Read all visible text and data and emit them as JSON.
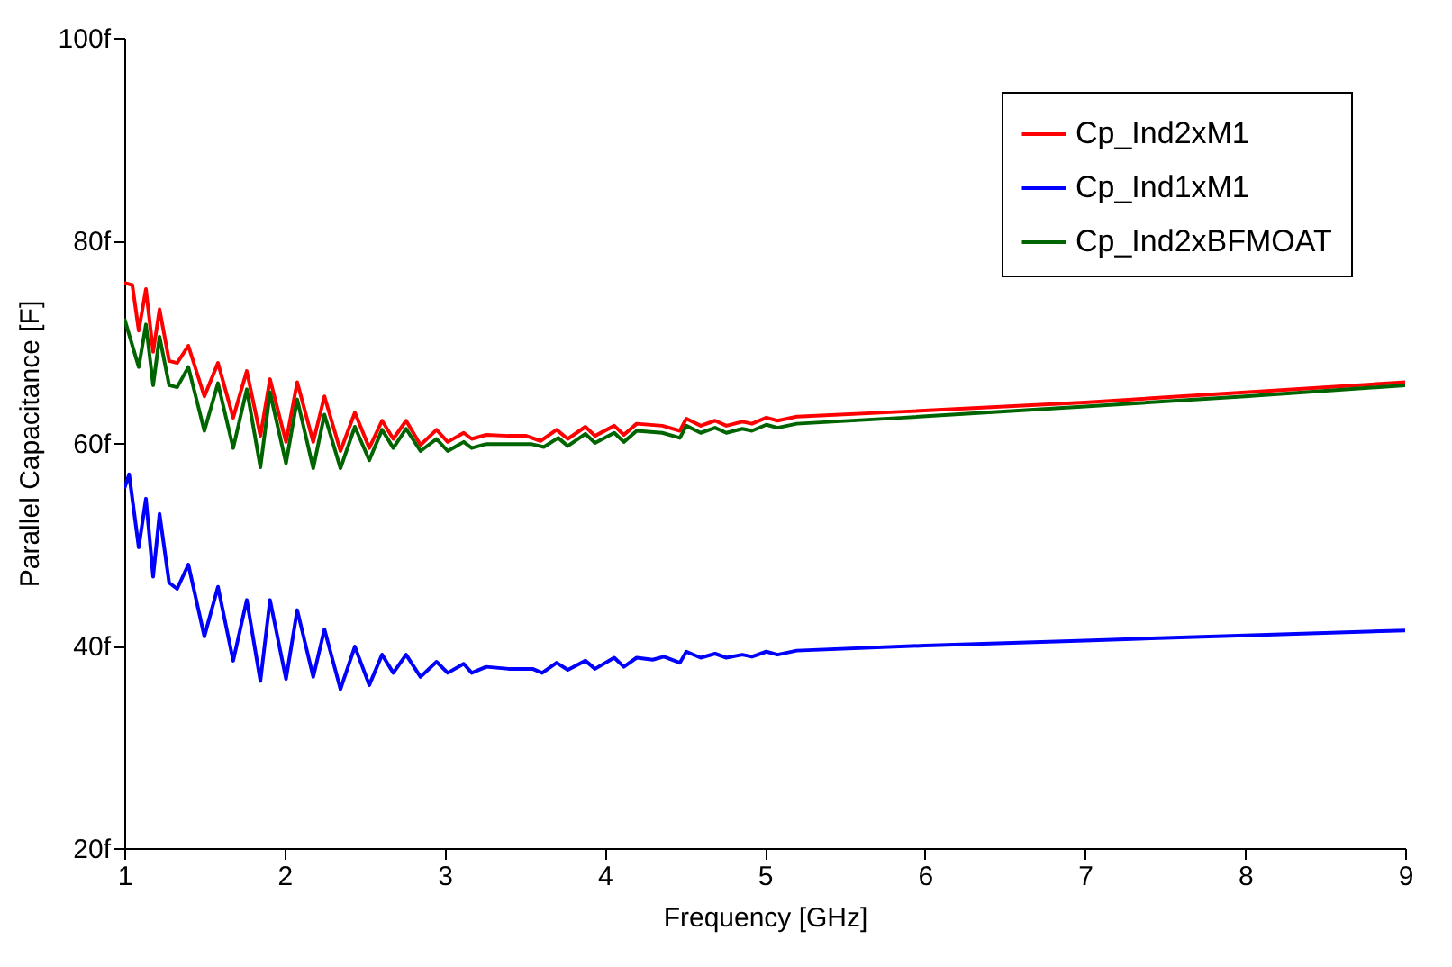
{
  "chart_data": {
    "type": "line",
    "xlabel": "Frequency [GHz]",
    "ylabel": "Parallel Capacitance [F]",
    "xlim": [
      1,
      9
    ],
    "xticks": [
      1,
      2,
      3,
      4,
      5,
      6,
      7,
      8,
      9
    ],
    "ylim": [
      20,
      100
    ],
    "yticks": [
      {
        "value": 20,
        "label": "20f"
      },
      {
        "value": 40,
        "label": "40f"
      },
      {
        "value": 60,
        "label": "60f"
      },
      {
        "value": 80,
        "label": "80f"
      },
      {
        "value": 100,
        "label": "100f"
      }
    ],
    "legend": "top right",
    "grid": false,
    "marker": "none",
    "line_style": "solid",
    "series": [
      {
        "name": "Cp_Ind2xM1",
        "color": "#ff0000",
        "x": [
          1.0,
          1.05,
          1.09,
          1.135,
          1.18,
          1.22,
          1.28,
          1.33,
          1.4,
          1.5,
          1.585,
          1.68,
          1.765,
          1.85,
          1.91,
          2.01,
          2.08,
          2.18,
          2.25,
          2.35,
          2.44,
          2.53,
          2.61,
          2.68,
          2.76,
          2.85,
          2.95,
          3.02,
          3.12,
          3.17,
          3.26,
          3.4,
          3.51,
          3.6,
          3.7,
          3.77,
          3.88,
          3.94,
          4.06,
          4.12,
          4.2,
          4.36,
          4.47,
          4.51,
          4.6,
          4.69,
          4.76,
          4.86,
          4.92,
          5.01,
          5.08,
          5.2,
          5.87,
          7,
          8,
          9
        ],
        "values": [
          75.8,
          75.6,
          71.1,
          75.2,
          69.0,
          73.2,
          68.1,
          67.9,
          69.6,
          64.6,
          67.9,
          62.5,
          67.1,
          60.7,
          66.3,
          60.1,
          66.0,
          60.1,
          64.6,
          59.2,
          63.0,
          59.5,
          62.2,
          60.4,
          62.2,
          59.8,
          61.3,
          60.1,
          61.0,
          60.4,
          60.8,
          60.7,
          60.7,
          60.2,
          61.3,
          60.4,
          61.6,
          60.7,
          61.7,
          60.8,
          61.9,
          61.7,
          61.2,
          62.4,
          61.7,
          62.2,
          61.7,
          62.1,
          61.9,
          62.5,
          62.2,
          62.6,
          63.1,
          64.0,
          65.0,
          66.0
        ]
      },
      {
        "name": "Cp_Ind1xM1",
        "color": "#0000ff",
        "x": [
          1.0,
          1.03,
          1.09,
          1.135,
          1.18,
          1.22,
          1.28,
          1.33,
          1.4,
          1.5,
          1.585,
          1.68,
          1.765,
          1.85,
          1.91,
          2.01,
          2.08,
          2.18,
          2.25,
          2.35,
          2.44,
          2.53,
          2.61,
          2.68,
          2.76,
          2.85,
          2.95,
          3.02,
          3.12,
          3.17,
          3.26,
          3.4,
          3.55,
          3.61,
          3.7,
          3.77,
          3.88,
          3.94,
          4.06,
          4.12,
          4.2,
          4.3,
          4.37,
          4.47,
          4.51,
          4.6,
          4.69,
          4.76,
          4.86,
          4.92,
          5.01,
          5.08,
          5.2,
          6,
          7,
          8,
          9
        ],
        "values": [
          55.5,
          56.9,
          49.7,
          54.5,
          46.8,
          53.0,
          46.2,
          45.6,
          48.0,
          40.9,
          45.8,
          38.5,
          44.5,
          36.5,
          44.5,
          36.7,
          43.5,
          36.9,
          41.6,
          35.7,
          39.9,
          36.1,
          39.1,
          37.3,
          39.1,
          36.9,
          38.4,
          37.3,
          38.2,
          37.3,
          37.9,
          37.7,
          37.7,
          37.3,
          38.3,
          37.6,
          38.5,
          37.7,
          38.8,
          37.9,
          38.8,
          38.6,
          38.9,
          38.3,
          39.4,
          38.8,
          39.2,
          38.8,
          39.1,
          38.9,
          39.4,
          39.1,
          39.5,
          40.0,
          40.5,
          41.0,
          41.5
        ]
      },
      {
        "name": "Cp_Ind2xBFMOAT",
        "color": "#006400",
        "x": [
          1.0,
          1.09,
          1.135,
          1.18,
          1.22,
          1.28,
          1.33,
          1.4,
          1.5,
          1.585,
          1.68,
          1.765,
          1.85,
          1.91,
          2.01,
          2.08,
          2.18,
          2.25,
          2.35,
          2.44,
          2.53,
          2.61,
          2.68,
          2.76,
          2.85,
          2.95,
          3.02,
          3.12,
          3.17,
          3.26,
          3.54,
          3.62,
          3.71,
          3.77,
          3.88,
          3.94,
          4.06,
          4.12,
          4.2,
          4.36,
          4.47,
          4.51,
          4.6,
          4.69,
          4.76,
          4.86,
          4.92,
          5.01,
          5.08,
          5.2,
          5.87,
          7,
          8,
          9
        ],
        "values": [
          72.3,
          67.5,
          71.7,
          65.7,
          70.5,
          65.7,
          65.5,
          67.5,
          61.2,
          65.9,
          59.5,
          65.3,
          57.6,
          65.0,
          58.0,
          64.3,
          57.5,
          62.8,
          57.5,
          61.6,
          58.3,
          61.3,
          59.5,
          61.4,
          59.2,
          60.4,
          59.2,
          60.1,
          59.5,
          59.9,
          59.9,
          59.6,
          60.5,
          59.7,
          60.9,
          60.0,
          61.0,
          60.1,
          61.2,
          61.0,
          60.5,
          61.7,
          61.0,
          61.5,
          61.0,
          61.4,
          61.2,
          61.8,
          61.5,
          61.9,
          62.5,
          63.6,
          64.6,
          65.7
        ]
      }
    ]
  }
}
